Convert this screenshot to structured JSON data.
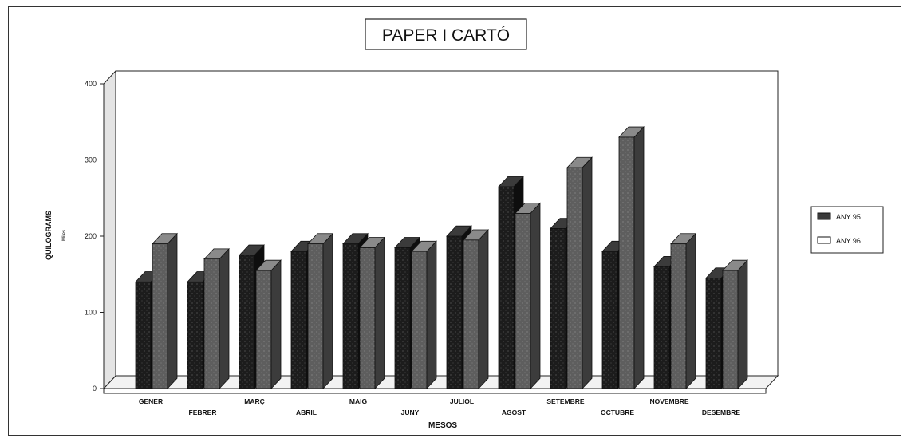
{
  "chart_data": {
    "type": "bar",
    "title": "PAPER I CARTÓ",
    "xlabel": "MESOS",
    "ylabel": "QUILOGRAMS",
    "ylabel_sub": "Miles",
    "ylim": [
      0,
      400
    ],
    "yticks": [
      0,
      100,
      200,
      300,
      400
    ],
    "categories": [
      "GENER",
      "FEBRER",
      "MARÇ",
      "ABRIL",
      "MAIG",
      "JUNY",
      "JULIOL",
      "AGOST",
      "SETEMBRE",
      "OCTUBRE",
      "NOVEMBRE",
      "DESEMBRE"
    ],
    "series": [
      {
        "name": "ANY 95",
        "values": [
          140,
          140,
          175,
          180,
          190,
          185,
          200,
          265,
          210,
          180,
          160,
          145
        ]
      },
      {
        "name": "ANY 96",
        "values": [
          190,
          170,
          155,
          190,
          185,
          180,
          195,
          230,
          290,
          330,
          190,
          155
        ]
      }
    ],
    "legend": "right",
    "grid": false,
    "colors": {
      "ANY 95": "#1e1e1e",
      "ANY 96": "#6a6a6a"
    }
  }
}
